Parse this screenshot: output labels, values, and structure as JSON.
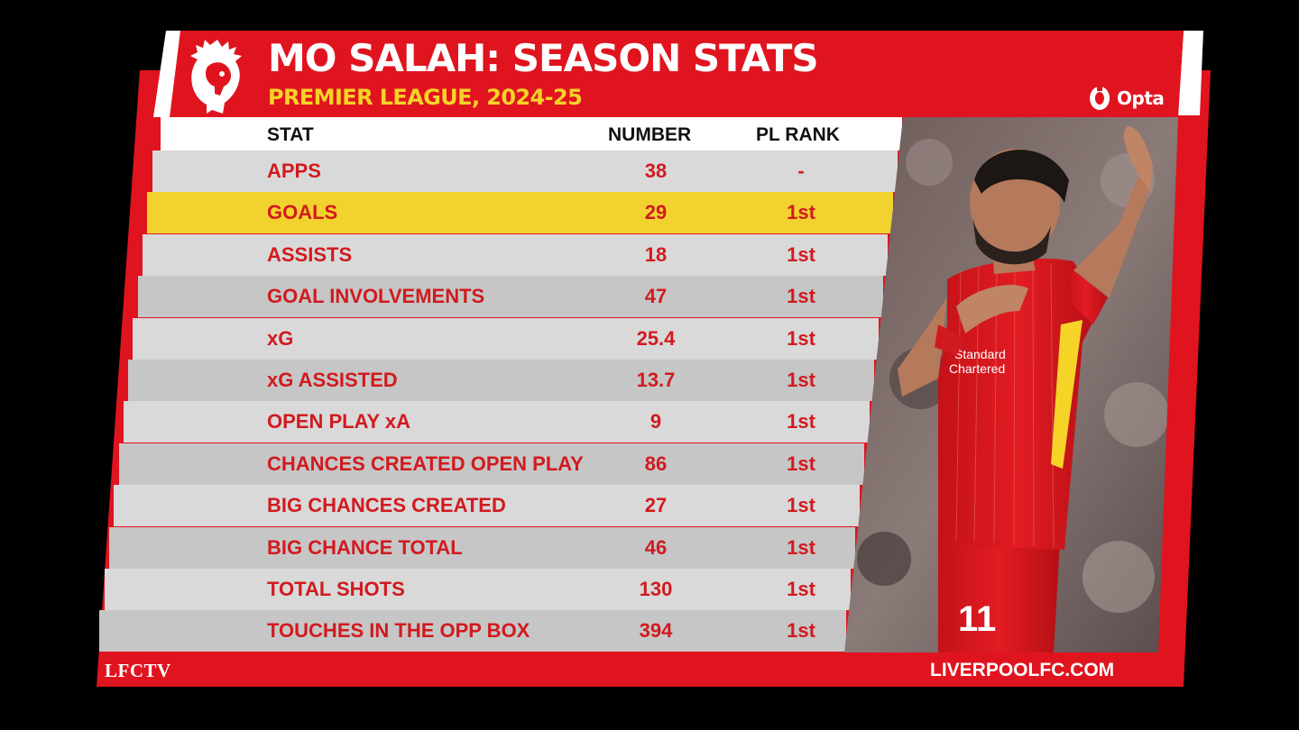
{
  "header": {
    "title": "MO SALAH: SEASON STATS",
    "subtitle": "PREMIER LEAGUE, 2024-25",
    "league_logo": "premier-league-lion-logo",
    "stats_provider": "Opta"
  },
  "table": {
    "columns": [
      "STAT",
      "NUMBER",
      "PL RANK"
    ],
    "rows": [
      {
        "stat": "APPS",
        "number": "38",
        "rank": "-",
        "highlight": false
      },
      {
        "stat": "GOALS",
        "number": "29",
        "rank": "1st",
        "highlight": true
      },
      {
        "stat": "ASSISTS",
        "number": "18",
        "rank": "1st",
        "highlight": false
      },
      {
        "stat": "GOAL INVOLVEMENTS",
        "number": "47",
        "rank": "1st",
        "highlight": false
      },
      {
        "stat": "xG",
        "number": "25.4",
        "rank": "1st",
        "highlight": false
      },
      {
        "stat": "xG ASSISTED",
        "number": "13.7",
        "rank": "1st",
        "highlight": false
      },
      {
        "stat": "OPEN PLAY xA",
        "number": "9",
        "rank": "1st",
        "highlight": false
      },
      {
        "stat": "CHANCES CREATED OPEN PLAY",
        "number": "86",
        "rank": "1st",
        "highlight": false
      },
      {
        "stat": "BIG CHANCES CREATED",
        "number": "27",
        "rank": "1st",
        "highlight": false
      },
      {
        "stat": "BIG CHANCE TOTAL",
        "number": "46",
        "rank": "1st",
        "highlight": false
      },
      {
        "stat": "TOTAL SHOTS",
        "number": "130",
        "rank": "1st",
        "highlight": false
      },
      {
        "stat": "TOUCHES IN THE OPP BOX",
        "number": "394",
        "rank": "1st",
        "highlight": false
      }
    ]
  },
  "player": {
    "shirt_number": "11",
    "sponsor": "Standard Chartered"
  },
  "footer": {
    "left": "LFCTV",
    "right": "LIVERPOOLFC.COM"
  },
  "colors": {
    "red": "#e0141f",
    "gold": "#f5d327",
    "row_light": "#d9d9d9",
    "row_dark": "#c6c6c6",
    "highlight": "#f2d22e",
    "stat_text": "#d11a1f"
  }
}
